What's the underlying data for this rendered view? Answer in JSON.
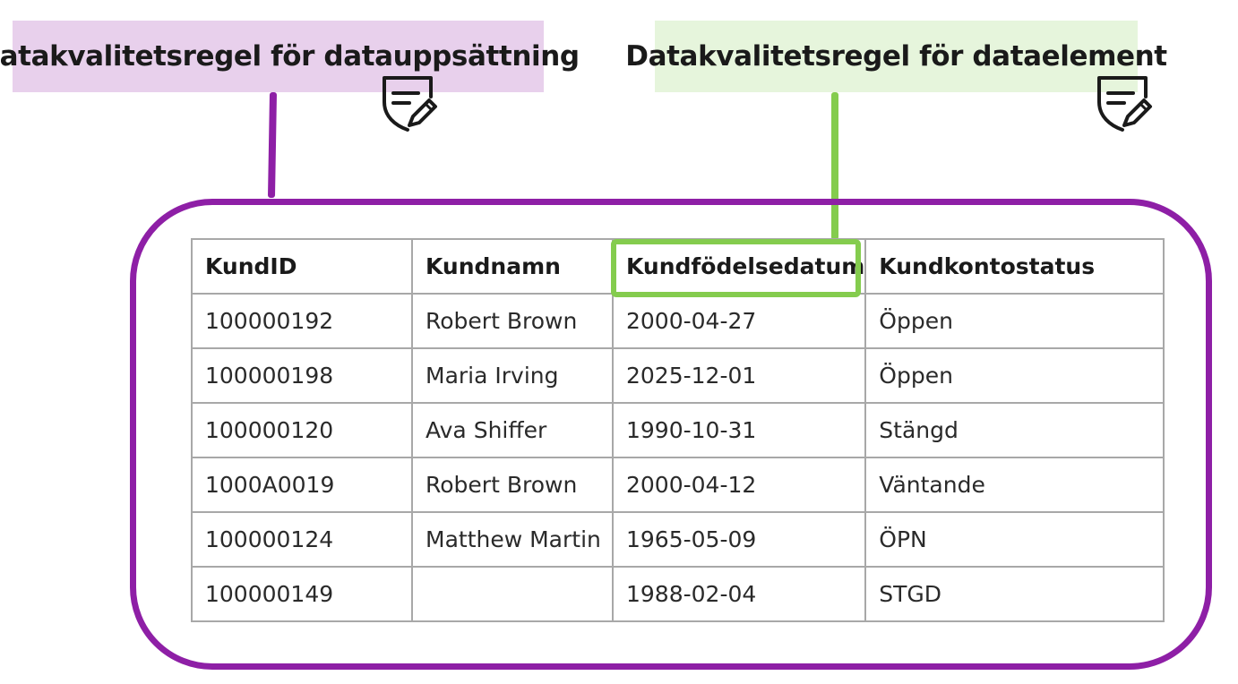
{
  "labels": {
    "dataset_rule": "Datakvalitetsregel för datauppsättning",
    "element_rule": "Datakvalitetsregel för dataelement"
  },
  "colors": {
    "dataset_label_bg": "#e8d0ec",
    "element_label_bg": "#e6f5dc",
    "dataset_accent": "#8e1fa6",
    "element_accent": "#84cc4e",
    "table_border": "#a8a8a8"
  },
  "icons": {
    "dataset_rule_icon": "shield-pencil-icon",
    "element_rule_icon": "shield-pencil-icon"
  },
  "table": {
    "headers": [
      "KundID",
      "Kundnamn",
      "Kundfödelsedatum",
      "Kundkontostatus"
    ],
    "highlighted_column": "Kundfödelsedatum",
    "rows": [
      [
        "100000192",
        "Robert Brown",
        "2000-04-27",
        "Öppen"
      ],
      [
        "100000198",
        "Maria Irving",
        "2025-12-01",
        "Öppen"
      ],
      [
        "100000120",
        "Ava Shiffer",
        "1990-10-31",
        "Stängd"
      ],
      [
        "1000A0019",
        "Robert Brown",
        "2000-04-12",
        "Väntande"
      ],
      [
        "100000124",
        "Matthew Martin",
        "1965-05-09",
        "ÖPN"
      ],
      [
        "100000149",
        "",
        "1988-02-04",
        "STGD"
      ]
    ]
  }
}
